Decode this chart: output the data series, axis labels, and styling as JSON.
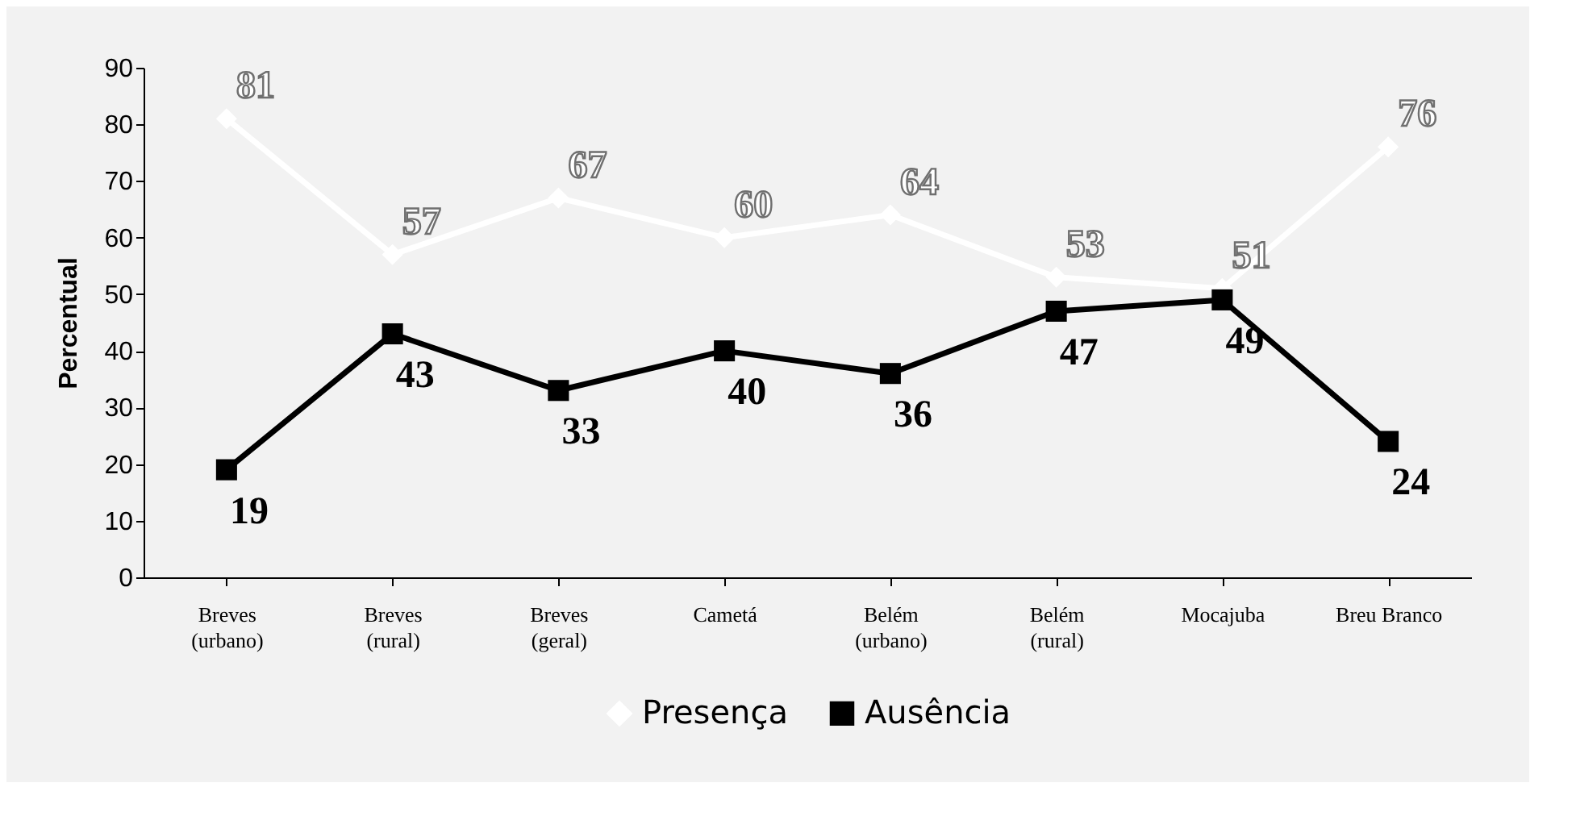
{
  "chart_data": {
    "type": "line",
    "ylabel": "Percentual",
    "categories": [
      "Breves (urbano)",
      "Breves (rural)",
      "Breves (geral)",
      "Cametá",
      "Belém (urbano)",
      "Belém (rural)",
      "Mocajuba",
      "Breu Branco"
    ],
    "series": [
      {
        "name": "Presença",
        "color": "#ffffff",
        "marker": "diamond",
        "values": [
          81,
          57,
          67,
          60,
          64,
          53,
          51,
          76
        ]
      },
      {
        "name": "Ausência",
        "color": "#000000",
        "marker": "square",
        "values": [
          19,
          43,
          33,
          40,
          36,
          47,
          49,
          24
        ]
      }
    ],
    "ylim": [
      0,
      90
    ],
    "yticks": [
      0,
      10,
      20,
      30,
      40,
      50,
      60,
      70,
      80,
      90
    ],
    "grid": false,
    "legend": "bottom",
    "data_labels": true,
    "line_style": "solid"
  }
}
